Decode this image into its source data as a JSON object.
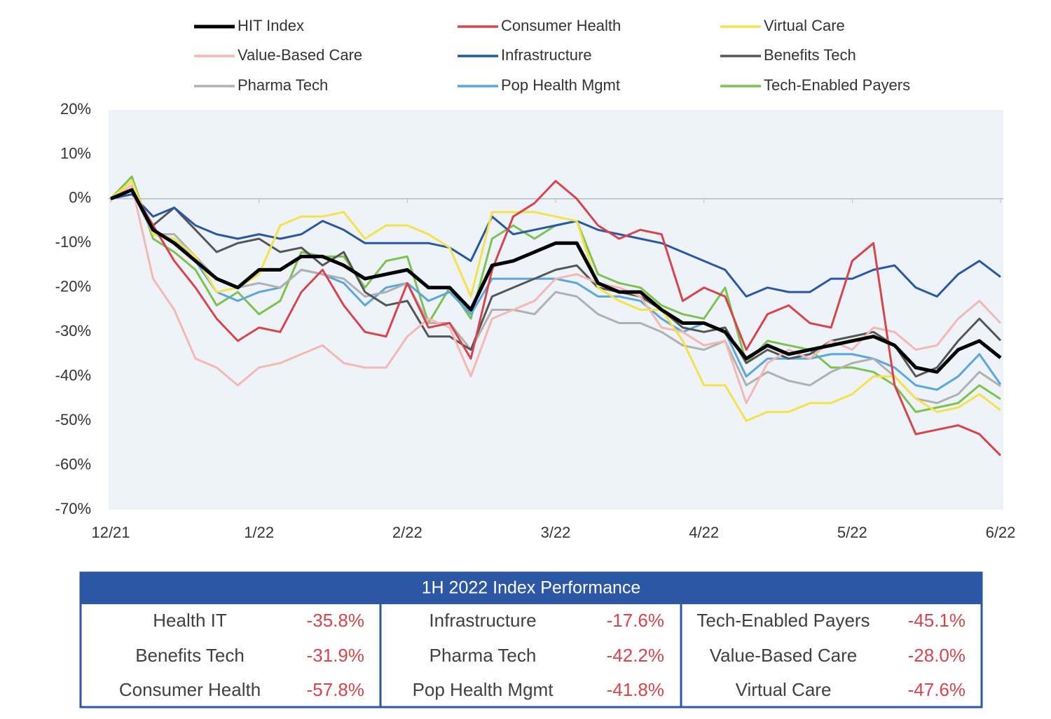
{
  "chart_data": {
    "type": "line",
    "categories": [
      "12/21",
      null,
      null,
      null,
      null,
      null,
      null,
      "1/22",
      null,
      null,
      null,
      null,
      null,
      null,
      "2/22",
      null,
      null,
      null,
      null,
      null,
      null,
      "3/22",
      null,
      null,
      null,
      null,
      null,
      null,
      "4/22",
      null,
      null,
      null,
      null,
      null,
      null,
      "5/22",
      null,
      null,
      null,
      null,
      null,
      null,
      "6/22"
    ],
    "ylim": [
      -70,
      20
    ],
    "yticks": [
      {
        "value": 20,
        "label": "20%"
      },
      {
        "value": 10,
        "label": "10%"
      },
      {
        "value": 0,
        "label": "0%"
      },
      {
        "value": -10,
        "label": "-10%"
      },
      {
        "value": -20,
        "label": "-20%"
      },
      {
        "value": -30,
        "label": "-30%"
      },
      {
        "value": -40,
        "label": "-40%"
      },
      {
        "value": -50,
        "label": "-50%"
      },
      {
        "value": -60,
        "label": "-60%"
      },
      {
        "value": -70,
        "label": "-70%"
      }
    ],
    "zero_line": true,
    "series": [
      {
        "name": "HIT Index",
        "color": "#000000",
        "values": [
          0,
          2,
          -7,
          -10,
          -14,
          -18,
          -20,
          -16,
          -16,
          -13,
          -13,
          -15,
          -18,
          -17,
          -16,
          -20,
          -20,
          -25,
          -15,
          -14,
          -12,
          -10,
          -10,
          -19,
          -21,
          -21,
          -25,
          -28,
          -28,
          -30,
          -36,
          -33,
          -35,
          -34,
          -33,
          -32,
          -31,
          -33,
          -38,
          -39,
          -34,
          -32,
          -35.8
        ]
      },
      {
        "name": "Consumer Health",
        "color": "#d9444a",
        "values": [
          0,
          2,
          -6,
          -14,
          -20,
          -27,
          -32,
          -29,
          -30,
          -21,
          -16,
          -24,
          -30,
          -31,
          -19,
          -29,
          -28,
          -36,
          -16,
          -4,
          -1,
          4,
          0,
          -6,
          -9,
          -7,
          -8,
          -23,
          -20,
          -22,
          -34,
          -26,
          -24,
          -28,
          -29,
          -14,
          -10,
          -42,
          -53,
          -52,
          -51,
          -53,
          -57.8
        ]
      },
      {
        "name": "Virtual Care",
        "color": "#f5e24a",
        "values": [
          0,
          4,
          -8,
          -9,
          -13,
          -21,
          -20,
          -17,
          -6,
          -4,
          -4,
          -3,
          -9,
          -6,
          -6,
          -8,
          -11,
          -22,
          -3,
          -3,
          -3,
          -4,
          -5,
          -20,
          -23,
          -25,
          -25,
          -32,
          -42,
          -42,
          -50,
          -48,
          -48,
          -46,
          -46,
          -44,
          -40,
          -40,
          -45,
          -48,
          -47,
          -44,
          -47.6
        ]
      },
      {
        "name": "Value-Based Care",
        "color": "#f5b7b1",
        "values": [
          0,
          3,
          -18,
          -25,
          -36,
          -38,
          -42,
          -38,
          -37,
          -35,
          -33,
          -37,
          -38,
          -38,
          -31,
          -27,
          -29,
          -40,
          -27,
          -25,
          -23,
          -18,
          -17,
          -19,
          -20,
          -22,
          -29,
          -30,
          -33,
          -32,
          -46,
          -37,
          -34,
          -36,
          -32,
          -34,
          -29,
          -30,
          -34,
          -33,
          -27,
          -23,
          -28
        ]
      },
      {
        "name": "Infrastructure",
        "color": "#2857a8",
        "values": [
          0,
          1,
          -4,
          -2,
          -6,
          -8,
          -9,
          -8,
          -9,
          -8,
          -5,
          -7,
          -10,
          -10,
          -10,
          -10,
          -11,
          -14,
          -4,
          -8,
          -7,
          -6,
          -5,
          -7,
          -8,
          -9,
          -10,
          -12,
          -14,
          -16,
          -22,
          -20,
          -21,
          -21,
          -18,
          -18,
          -16,
          -15,
          -20,
          -22,
          -17,
          -14,
          -17.6
        ]
      },
      {
        "name": "Benefits Tech",
        "color": "#555555",
        "values": [
          0,
          2,
          -6,
          -2,
          -7,
          -12,
          -10,
          -9,
          -12,
          -11,
          -15,
          -12,
          -21,
          -24,
          -23,
          -31,
          -31,
          -34,
          -22,
          -20,
          -18,
          -16,
          -15,
          -20,
          -21,
          -22,
          -25,
          -29,
          -30,
          -29,
          -37,
          -34,
          -36,
          -35,
          -32,
          -31,
          -30,
          -33,
          -40,
          -38,
          -32,
          -27,
          -31.9
        ]
      },
      {
        "name": "Pharma Tech",
        "color": "#b0b0b0",
        "values": [
          0,
          2,
          -8,
          -8,
          -13,
          -18,
          -20,
          -19,
          -20,
          -16,
          -17,
          -18,
          -22,
          -21,
          -19,
          -28,
          -28,
          -34,
          -25,
          -25,
          -26,
          -21,
          -22,
          -26,
          -28,
          -28,
          -30,
          -33,
          -34,
          -32,
          -42,
          -39,
          -41,
          -42,
          -39,
          -37,
          -36,
          -40,
          -45,
          -46,
          -44,
          -39,
          -42.2
        ]
      },
      {
        "name": "Pop Health Mgmt",
        "color": "#5aa6e0",
        "values": [
          0,
          2,
          -8,
          -9,
          -14,
          -21,
          -23,
          -21,
          -20,
          -16,
          -17,
          -19,
          -24,
          -20,
          -19,
          -23,
          -21,
          -26,
          -18,
          -18,
          -18,
          -18,
          -19,
          -22,
          -22,
          -23,
          -27,
          -30,
          -28,
          -30,
          -40,
          -36,
          -36,
          -36,
          -35,
          -35,
          -36,
          -38,
          -42,
          -43,
          -40,
          -35,
          -41.8
        ]
      },
      {
        "name": "Tech-Enabled Payers",
        "color": "#7cc24e",
        "values": [
          0,
          5,
          -9,
          -12,
          -16,
          -24,
          -21,
          -26,
          -23,
          -12,
          -13,
          -13,
          -20,
          -14,
          -13,
          -28,
          -20,
          -27,
          -9,
          -6,
          -9,
          -6,
          -5,
          -17,
          -19,
          -20,
          -24,
          -26,
          -27,
          -20,
          -37,
          -32,
          -33,
          -34,
          -38,
          -38,
          -39,
          -42,
          -48,
          -47,
          -46,
          -42,
          -45.1
        ]
      }
    ]
  },
  "table": {
    "title": "1H 2022 Index Performance",
    "rows": [
      [
        [
          "Health IT",
          "-35.8%"
        ],
        [
          "Infrastructure",
          "-17.6%"
        ],
        [
          "Tech-Enabled Payers",
          "-45.1%"
        ]
      ],
      [
        [
          "Benefits Tech",
          "-31.9%"
        ],
        [
          "Pharma Tech",
          "-42.2%"
        ],
        [
          "Value-Based Care",
          "-28.0%"
        ]
      ],
      [
        [
          "Consumer Health",
          "-57.8%"
        ],
        [
          "Pop Health Mgmt",
          "-41.8%"
        ],
        [
          "Virtual Care",
          "-47.6%"
        ]
      ]
    ]
  }
}
